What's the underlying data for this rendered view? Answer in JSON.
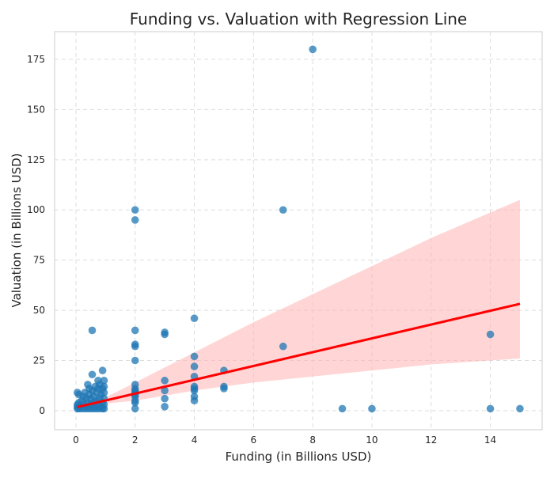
{
  "chart_data": {
    "type": "scatter",
    "title": "Funding vs. Valuation with Regression Line",
    "xlabel": "Funding (in Billions USD)",
    "ylabel": "Valuation (in Billions USD)",
    "xlim": [
      -0.72,
      15.75
    ],
    "ylim": [
      -9.5,
      188.8
    ],
    "xticks": [
      0,
      2,
      4,
      6,
      8,
      10,
      12,
      14
    ],
    "yticks": [
      0,
      25,
      50,
      75,
      100,
      125,
      150,
      175
    ],
    "grid": true,
    "colors": {
      "points": "#1f77b4",
      "line": "#ff0000",
      "band": "#ffb3b3"
    },
    "regression": {
      "x": [
        0.05,
        15
      ],
      "y": [
        1.8,
        53.2
      ]
    },
    "confidence_band": {
      "x": [
        0.05,
        1,
        2,
        4,
        6,
        8,
        10,
        12,
        15
      ],
      "upper": [
        3.0,
        6.5,
        14,
        29,
        44,
        58,
        72,
        86,
        105
      ],
      "lower": [
        0.6,
        3.5,
        5,
        10,
        14,
        17,
        20,
        23,
        26
      ]
    },
    "points": [
      [
        0.05,
        1
      ],
      [
        0.05,
        2
      ],
      [
        0.05,
        3
      ],
      [
        0.05,
        9
      ],
      [
        0.1,
        8
      ],
      [
        0.1,
        1
      ],
      [
        0.1,
        4
      ],
      [
        0.15,
        2
      ],
      [
        0.2,
        1
      ],
      [
        0.2,
        5
      ],
      [
        0.25,
        3
      ],
      [
        0.25,
        7
      ],
      [
        0.3,
        1
      ],
      [
        0.3,
        9
      ],
      [
        0.35,
        2
      ],
      [
        0.35,
        6
      ],
      [
        0.4,
        1
      ],
      [
        0.4,
        4
      ],
      [
        0.4,
        13
      ],
      [
        0.45,
        2
      ],
      [
        0.45,
        8
      ],
      [
        0.45,
        11
      ],
      [
        0.5,
        1
      ],
      [
        0.5,
        3
      ],
      [
        0.5,
        6
      ],
      [
        0.55,
        18
      ],
      [
        0.55,
        40
      ],
      [
        0.55,
        10
      ],
      [
        0.6,
        1
      ],
      [
        0.6,
        4
      ],
      [
        0.6,
        7
      ],
      [
        0.65,
        2
      ],
      [
        0.65,
        12
      ],
      [
        0.7,
        1
      ],
      [
        0.7,
        5
      ],
      [
        0.7,
        9
      ],
      [
        0.75,
        15
      ],
      [
        0.75,
        3
      ],
      [
        0.75,
        11
      ],
      [
        0.8,
        1
      ],
      [
        0.8,
        6
      ],
      [
        0.8,
        13
      ],
      [
        0.85,
        2
      ],
      [
        0.85,
        8
      ],
      [
        0.9,
        20
      ],
      [
        0.9,
        1
      ],
      [
        0.9,
        4
      ],
      [
        0.9,
        11
      ],
      [
        0.95,
        15
      ],
      [
        0.95,
        1
      ],
      [
        0.95,
        3
      ],
      [
        0.95,
        6
      ],
      [
        0.95,
        9
      ],
      [
        0.95,
        12
      ],
      [
        2,
        100
      ],
      [
        2,
        95
      ],
      [
        2,
        40
      ],
      [
        2,
        33
      ],
      [
        2,
        32
      ],
      [
        2,
        25
      ],
      [
        2,
        13
      ],
      [
        2,
        11
      ],
      [
        2,
        10
      ],
      [
        2,
        9
      ],
      [
        2,
        8
      ],
      [
        2,
        7
      ],
      [
        2,
        5
      ],
      [
        2,
        4
      ],
      [
        2,
        1
      ],
      [
        3,
        39
      ],
      [
        3,
        38
      ],
      [
        3,
        15
      ],
      [
        3,
        10
      ],
      [
        3,
        6
      ],
      [
        3,
        2
      ],
      [
        4,
        46
      ],
      [
        4,
        27
      ],
      [
        4,
        22
      ],
      [
        4,
        17
      ],
      [
        4,
        12
      ],
      [
        4,
        11
      ],
      [
        4,
        10
      ],
      [
        4,
        7
      ],
      [
        4,
        5
      ],
      [
        5,
        20
      ],
      [
        5,
        12
      ],
      [
        5,
        11
      ],
      [
        7,
        100
      ],
      [
        7,
        32
      ],
      [
        8,
        180
      ],
      [
        9,
        1
      ],
      [
        10,
        1
      ],
      [
        14,
        38
      ],
      [
        14,
        1
      ],
      [
        15,
        1
      ]
    ]
  }
}
